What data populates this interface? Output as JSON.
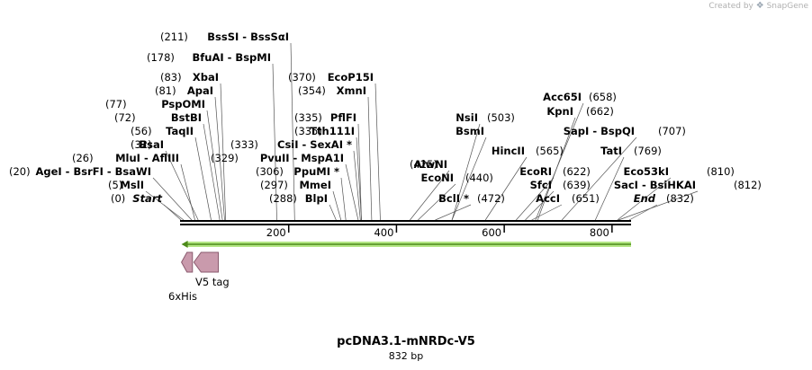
{
  "credit": {
    "prefix": "Created by",
    "brand": "SnapGene"
  },
  "map": {
    "name": "pcDNA3.1-mNRDc-V5",
    "length_label": "832 bp",
    "length": 832,
    "ticks": [
      200,
      400,
      600,
      800
    ],
    "colors": {
      "backbone": "#000000",
      "orf_fill": "#b4e685",
      "orf_stroke": "#4d8a1a",
      "feature_fill": "#c99aac",
      "feature_stroke": "#8a5a6e"
    },
    "sites": [
      {
        "name": "Start",
        "position": 0,
        "pos_label": "(0)",
        "italic": true
      },
      {
        "name": "MslI",
        "position": 5,
        "pos_label": "(5)"
      },
      {
        "name": "AgeI  -  BsrFI  -  BsaWI",
        "position": 20,
        "pos_label": "(20)"
      },
      {
        "name": "MluI  -  AflIII",
        "position": 26,
        "pos_label": "(26)"
      },
      {
        "name": "BsaI",
        "position": 32,
        "pos_label": "(32)"
      },
      {
        "name": "TaqII",
        "position": 56,
        "pos_label": "(56)"
      },
      {
        "name": "BstBI",
        "position": 72,
        "pos_label": "(72)"
      },
      {
        "name": "PspOMI",
        "position": 77,
        "pos_label": "(77)"
      },
      {
        "name": "ApaI",
        "position": 81,
        "pos_label": "(81)"
      },
      {
        "name": "XbaI",
        "position": 83,
        "pos_label": "(83)"
      },
      {
        "name": "BfuAI  -  BspMI",
        "position": 178,
        "pos_label": "(178)"
      },
      {
        "name": "BssSI  -  BssSαI",
        "position": 211,
        "pos_label": "(211)"
      },
      {
        "name": "BlpI",
        "position": 288,
        "pos_label": "(288)"
      },
      {
        "name": "MmeI",
        "position": 297,
        "pos_label": "(297)"
      },
      {
        "name": "PpuMI *",
        "position": 306,
        "pos_label": "(306)"
      },
      {
        "name": "PvuII  -  MspA1I",
        "position": 329,
        "pos_label": "(329)"
      },
      {
        "name": "CsiI  -  SexAI *",
        "position": 333,
        "pos_label": "(333)"
      },
      {
        "name": "Tth111I",
        "position": 335,
        "pos_label": "(335)"
      },
      {
        "name": "PflFI",
        "position": 335,
        "pos_label": "(335)"
      },
      {
        "name": "XmnI",
        "position": 354,
        "pos_label": "(354)"
      },
      {
        "name": "EcoP15I",
        "position": 370,
        "pos_label": "(370)"
      },
      {
        "name": "AlwNI",
        "position": 425,
        "pos_label": "(425)"
      },
      {
        "name": "EcoNI",
        "position": 440,
        "pos_label": "(440)"
      },
      {
        "name": "BclI *",
        "position": 472,
        "pos_label": "(472)"
      },
      {
        "name": "BsmI",
        "position": 503,
        "pos_label": ""
      },
      {
        "name": "NsiI",
        "position": 503,
        "pos_label": "(503)"
      },
      {
        "name": "HincII",
        "position": 565,
        "pos_label": "(565)"
      },
      {
        "name": "EcoRI",
        "position": 622,
        "pos_label": "(622)"
      },
      {
        "name": "SfcI",
        "position": 639,
        "pos_label": "(639)"
      },
      {
        "name": "AccI",
        "position": 651,
        "pos_label": "(651)"
      },
      {
        "name": "Acc65I",
        "position": 658,
        "pos_label": "(658)"
      },
      {
        "name": "KpnI",
        "position": 662,
        "pos_label": "(662)"
      },
      {
        "name": "SapI  -  BspQI",
        "position": 707,
        "pos_label": "(707)"
      },
      {
        "name": "TatI",
        "position": 769,
        "pos_label": "(769)"
      },
      {
        "name": "Eco53kI",
        "position": 810,
        "pos_label": "(810)"
      },
      {
        "name": "SacI  -  BsiHKAI",
        "position": 812,
        "pos_label": "(812)"
      },
      {
        "name": "End",
        "position": 832,
        "pos_label": "(832)",
        "italic": true
      }
    ],
    "features": [
      {
        "name": "6xHis",
        "label": "6xHis",
        "start": 1,
        "end": 18,
        "direction": "reverse"
      },
      {
        "name": "V5 tag",
        "label": "V5 tag",
        "start": 24,
        "end": 66,
        "direction": "reverse"
      }
    ],
    "orf": {
      "start": 1,
      "end": 832,
      "direction": "reverse"
    }
  }
}
